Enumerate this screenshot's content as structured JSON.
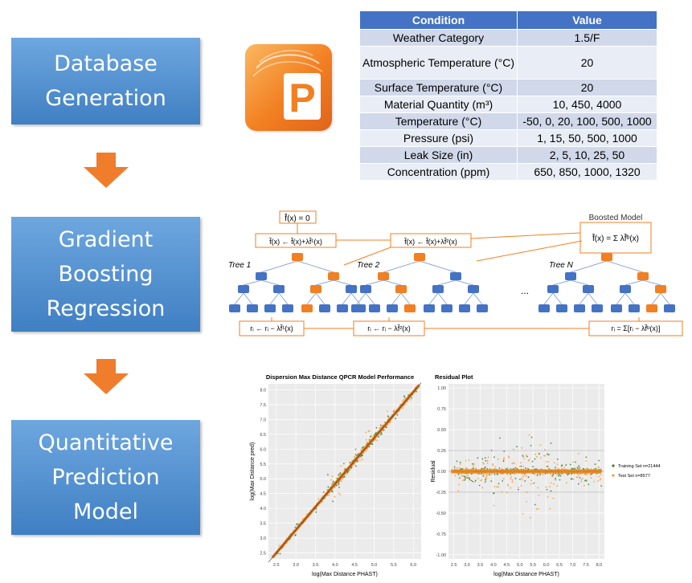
{
  "stages": [
    {
      "line1": "Database",
      "line2": "Generation",
      "line3": ""
    },
    {
      "line1": "Gradient",
      "line2": "Boosting",
      "line3": "Regression"
    },
    {
      "line1": "Quantitative",
      "line2": "Prediction",
      "line3": "Model"
    }
  ],
  "logo": {
    "letter": "P",
    "icon": "phast-logo-icon",
    "color": "#f27f21"
  },
  "table": {
    "headers": {
      "condition": "Condition",
      "value": "Value"
    },
    "rows": [
      {
        "condition": "Weather Category",
        "value": "1.5/F"
      },
      {
        "condition": "Atmospheric Temperature (°C)",
        "value": "20"
      },
      {
        "condition": "Surface Temperature (°C)",
        "value": "20"
      },
      {
        "condition": "Material Quantity (m³)",
        "value": "10, 450, 4000"
      },
      {
        "condition": "Temperature (°C)",
        "value": "-50, 0, 20, 100, 500, 1000"
      },
      {
        "condition": "Pressure (psi)",
        "value": "1, 15, 50, 500, 1000"
      },
      {
        "condition": "Leak Size (in)",
        "value": "2, 5, 10, 25, 50"
      },
      {
        "condition": "Concentration (ppm)",
        "value": "650, 850, 1000, 1320"
      }
    ],
    "header_color": "#4472c4"
  },
  "gb": {
    "init": "f̂(x) = 0",
    "update1": "f̂(x) ← f̂(x)+λf̂¹(x)",
    "update2": "f̂(x) ← f̂(x)+λf̂²(x)",
    "boosted_label": "Boosted Model",
    "boosted_formula": "f̂(x) = Σ λf̂ᵇ(x)",
    "tree1": "Tree 1",
    "tree2": "Tree 2",
    "treeN": "Tree N",
    "ellipsis": "...",
    "res1": "rᵢ ← rᵢ − λf̂¹(x)",
    "res2": "rᵢ ← rᵢ − λf̂²(x)",
    "resN": "rᵢ = Σ[rᵢ − λf̂ᵇ(x)]",
    "orange": "#f27f21",
    "blue": "#4472c4"
  },
  "chart_data": [
    {
      "type": "scatter",
      "title": "Dispersion Max Distance QPCR Model Performance",
      "xlabel": "log(Max Distance PHAST)",
      "ylabel": "log(Max Distance pred)",
      "xlim": [
        2.3,
        6.2
      ],
      "ylim": [
        2.3,
        8.2
      ],
      "xticks": [
        "2.5",
        "3.0",
        "3.5",
        "4.0",
        "4.5",
        "5.0",
        "5.5",
        "6.0"
      ],
      "yticks": [
        "2.5",
        "3.0",
        "3.5",
        "4.0",
        "4.5",
        "5.0",
        "5.5",
        "6.0",
        "6.5",
        "7.0",
        "7.5",
        "8.0"
      ],
      "grid": true,
      "series": [
        {
          "name": "Training Set n=21444",
          "color": "#2e7d32"
        },
        {
          "name": "Test Set n=8577",
          "color": "#f79a2f"
        }
      ]
    },
    {
      "type": "scatter",
      "title": "Residual Plot",
      "xlabel": "log(Max Distance PHAST)",
      "ylabel": "Residual",
      "xlim": [
        2.3,
        8.2
      ],
      "ylim": [
        -1.05,
        1.05
      ],
      "xticks": [
        "2.5",
        "3.0",
        "3.5",
        "4.0",
        "4.5",
        "5.0",
        "5.5",
        "6.0",
        "6.5",
        "7.0",
        "7.5",
        "8.0"
      ],
      "yticks": [
        "-1.00",
        "-0.75",
        "-0.50",
        "-0.25",
        "0.00",
        "0.25",
        "0.50",
        "0.75",
        "1.00"
      ],
      "grid": true,
      "legend_position": "right",
      "series": [
        {
          "name": "Training Set n=21444",
          "color": "#2e7d32"
        },
        {
          "name": "Test Set n=8577",
          "color": "#f79a2f"
        }
      ]
    }
  ]
}
